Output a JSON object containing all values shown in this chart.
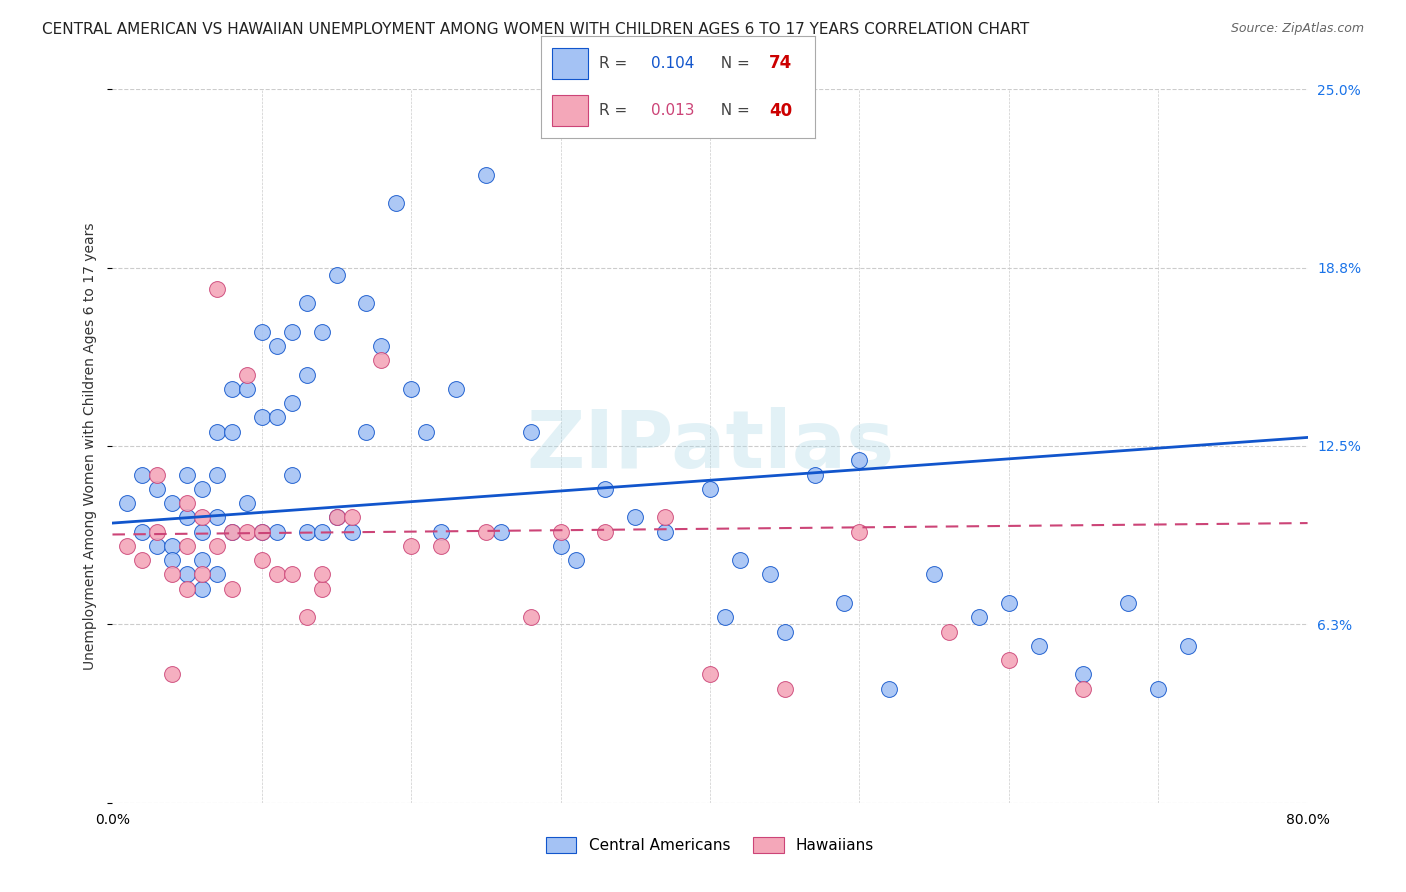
{
  "title": "CENTRAL AMERICAN VS HAWAIIAN UNEMPLOYMENT AMONG WOMEN WITH CHILDREN AGES 6 TO 17 YEARS CORRELATION CHART",
  "source": "Source: ZipAtlas.com",
  "ylabel": "Unemployment Among Women with Children Ages 6 to 17 years",
  "xlim": [
    0.0,
    0.8
  ],
  "ylim": [
    0.0,
    0.25
  ],
  "yticks": [
    0.0,
    0.0625,
    0.125,
    0.1875,
    0.25
  ],
  "ytick_labels": [
    "",
    "6.3%",
    "12.5%",
    "18.8%",
    "25.0%"
  ],
  "xtick_positions": [
    0.0,
    0.1,
    0.2,
    0.3,
    0.4,
    0.5,
    0.6,
    0.7,
    0.8
  ],
  "xtick_labels": [
    "0.0%",
    "",
    "",
    "",
    "",
    "",
    "",
    "",
    "80.0%"
  ],
  "blue_color": "#a4c2f4",
  "pink_color": "#f4a7b9",
  "blue_edge_color": "#1155cc",
  "pink_edge_color": "#cc4477",
  "blue_line_color": "#1155cc",
  "pink_line_color": "#cc4477",
  "R_blue": 0.104,
  "N_blue": 74,
  "R_pink": 0.013,
  "N_pink": 40,
  "watermark": "ZIPatlas",
  "background_color": "#ffffff",
  "grid_color": "#cccccc",
  "title_fontsize": 11,
  "axis_label_fontsize": 10,
  "tick_fontsize": 10,
  "right_tick_color": "#1a73e8",
  "blue_scatter_x": [
    0.01,
    0.02,
    0.02,
    0.03,
    0.03,
    0.04,
    0.04,
    0.04,
    0.05,
    0.05,
    0.05,
    0.06,
    0.06,
    0.06,
    0.06,
    0.07,
    0.07,
    0.07,
    0.07,
    0.08,
    0.08,
    0.08,
    0.09,
    0.09,
    0.1,
    0.1,
    0.1,
    0.11,
    0.11,
    0.11,
    0.12,
    0.12,
    0.12,
    0.13,
    0.13,
    0.13,
    0.14,
    0.14,
    0.15,
    0.15,
    0.16,
    0.17,
    0.17,
    0.18,
    0.19,
    0.2,
    0.21,
    0.22,
    0.23,
    0.25,
    0.26,
    0.28,
    0.3,
    0.31,
    0.33,
    0.35,
    0.37,
    0.4,
    0.41,
    0.42,
    0.44,
    0.45,
    0.47,
    0.49,
    0.5,
    0.52,
    0.55,
    0.58,
    0.6,
    0.62,
    0.65,
    0.68,
    0.7,
    0.72
  ],
  "blue_scatter_y": [
    0.105,
    0.115,
    0.095,
    0.11,
    0.09,
    0.105,
    0.09,
    0.085,
    0.115,
    0.1,
    0.08,
    0.11,
    0.095,
    0.085,
    0.075,
    0.13,
    0.115,
    0.1,
    0.08,
    0.145,
    0.13,
    0.095,
    0.145,
    0.105,
    0.165,
    0.135,
    0.095,
    0.16,
    0.135,
    0.095,
    0.165,
    0.14,
    0.115,
    0.175,
    0.15,
    0.095,
    0.165,
    0.095,
    0.185,
    0.1,
    0.095,
    0.175,
    0.13,
    0.16,
    0.21,
    0.145,
    0.13,
    0.095,
    0.145,
    0.22,
    0.095,
    0.13,
    0.09,
    0.085,
    0.11,
    0.1,
    0.095,
    0.11,
    0.065,
    0.085,
    0.08,
    0.06,
    0.115,
    0.07,
    0.12,
    0.04,
    0.08,
    0.065,
    0.07,
    0.055,
    0.045,
    0.07,
    0.04,
    0.055
  ],
  "pink_scatter_x": [
    0.01,
    0.02,
    0.03,
    0.03,
    0.04,
    0.04,
    0.05,
    0.05,
    0.05,
    0.06,
    0.06,
    0.07,
    0.07,
    0.08,
    0.08,
    0.09,
    0.09,
    0.1,
    0.1,
    0.11,
    0.12,
    0.13,
    0.14,
    0.14,
    0.15,
    0.16,
    0.18,
    0.2,
    0.22,
    0.25,
    0.28,
    0.3,
    0.33,
    0.37,
    0.4,
    0.45,
    0.5,
    0.56,
    0.6,
    0.65
  ],
  "pink_scatter_y": [
    0.09,
    0.085,
    0.115,
    0.095,
    0.08,
    0.045,
    0.105,
    0.09,
    0.075,
    0.1,
    0.08,
    0.18,
    0.09,
    0.095,
    0.075,
    0.15,
    0.095,
    0.095,
    0.085,
    0.08,
    0.08,
    0.065,
    0.075,
    0.08,
    0.1,
    0.1,
    0.155,
    0.09,
    0.09,
    0.095,
    0.065,
    0.095,
    0.095,
    0.1,
    0.045,
    0.04,
    0.095,
    0.06,
    0.05,
    0.04
  ],
  "blue_trend_x": [
    0.0,
    0.8
  ],
  "blue_trend_y_start": 0.098,
  "blue_trend_y_end": 0.128,
  "pink_trend_x": [
    0.0,
    0.8
  ],
  "pink_trend_y_start": 0.094,
  "pink_trend_y_end": 0.098
}
